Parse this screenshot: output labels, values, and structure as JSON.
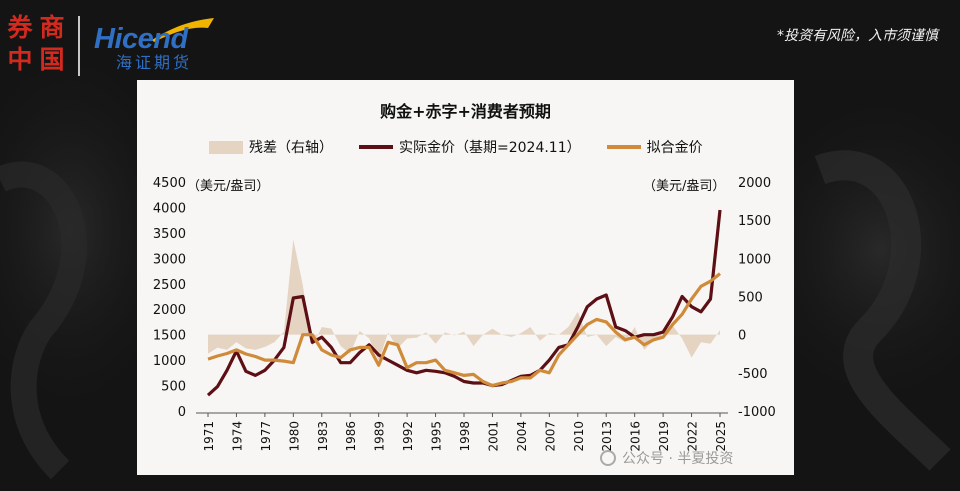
{
  "disclaimer": "*投资有风险，入市须谨慎",
  "brand": {
    "seal_chars": [
      "券",
      "商",
      "中",
      "国"
    ],
    "logo_en": "Hicend",
    "logo_cn": "海证期货",
    "seal_color": "#d22a1e",
    "logo_color": "#2f6fc4"
  },
  "watermark": {
    "icon": "wechat-icon",
    "text": "公众号 · 半夏投资"
  },
  "chart_data": {
    "type": "line",
    "title": "购金+赤字+消费者预期",
    "left_unit": "（美元/盎司）",
    "right_unit": "（美元/盎司）",
    "ylim_left": [
      0,
      4500
    ],
    "ylim_right": [
      -1000,
      2000
    ],
    "yticks_left": [
      "0",
      "500",
      "1000",
      "1500",
      "2000",
      "2500",
      "3000",
      "3500",
      "4000",
      "4500"
    ],
    "yticks_right": [
      "-1000",
      "-500",
      "0",
      "500",
      "1000",
      "1500",
      "2000"
    ],
    "x_tick_labels": [
      "1971",
      "1974",
      "1977",
      "1980",
      "1983",
      "1986",
      "1989",
      "1992",
      "1995",
      "1998",
      "2001",
      "2004",
      "2007",
      "2010",
      "2013",
      "2016",
      "2019",
      "2022",
      "2025"
    ],
    "x": [
      1971,
      1972,
      1973,
      1974,
      1975,
      1976,
      1977,
      1978,
      1979,
      1980,
      1981,
      1982,
      1983,
      1984,
      1985,
      1986,
      1987,
      1988,
      1989,
      1990,
      1991,
      1992,
      1993,
      1994,
      1995,
      1996,
      1997,
      1998,
      1999,
      2000,
      2001,
      2002,
      2003,
      2004,
      2005,
      2006,
      2007,
      2008,
      2009,
      2010,
      2011,
      2012,
      2013,
      2014,
      2015,
      2016,
      2017,
      2018,
      2019,
      2020,
      2021,
      2022,
      2023,
      2024,
      2025
    ],
    "series": [
      {
        "name": "残差（右轴）",
        "axis": "right",
        "style": "area",
        "color": "#e6d4c2",
        "values": [
          -250,
          -170,
          -200,
          -100,
          -180,
          -200,
          -160,
          -100,
          40,
          1250,
          650,
          -150,
          100,
          80,
          -150,
          -250,
          50,
          -50,
          -350,
          30,
          -180,
          -50,
          -40,
          30,
          -120,
          30,
          -10,
          40,
          -150,
          0,
          80,
          0,
          -30,
          20,
          100,
          -80,
          20,
          0,
          100,
          300,
          -30,
          0,
          -150,
          -30,
          -100,
          100,
          -200,
          -80,
          0,
          120,
          -50,
          -300,
          -100,
          -120,
          60
        ]
      },
      {
        "name": "实际金价（基期=2024.11）",
        "axis": "left",
        "style": "line",
        "color": "#5c0f14",
        "values": [
          310,
          480,
          800,
          1180,
          780,
          700,
          800,
          1000,
          1250,
          2220,
          2250,
          1350,
          1450,
          1250,
          950,
          950,
          1150,
          1300,
          1100,
          1000,
          900,
          800,
          750,
          800,
          780,
          750,
          680,
          580,
          550,
          550,
          500,
          520,
          600,
          680,
          700,
          800,
          1000,
          1250,
          1300,
          1650,
          2050,
          2200,
          2280,
          1650,
          1580,
          1450,
          1500,
          1500,
          1550,
          1850,
          2250,
          2050,
          1950,
          2200,
          3950
        ]
      },
      {
        "name": "拟合金价",
        "axis": "left",
        "style": "line",
        "color": "#cf8a3a",
        "values": [
          1020,
          1080,
          1130,
          1200,
          1120,
          1070,
          1000,
          1000,
          980,
          950,
          1500,
          1500,
          1200,
          1100,
          1050,
          1200,
          1250,
          1250,
          900,
          1350,
          1300,
          850,
          950,
          950,
          1000,
          800,
          750,
          700,
          720,
          580,
          500,
          550,
          580,
          650,
          650,
          800,
          750,
          1100,
          1300,
          1500,
          1700,
          1800,
          1750,
          1550,
          1400,
          1450,
          1300,
          1400,
          1450,
          1700,
          1900,
          2200,
          2450,
          2550,
          2700
        ]
      }
    ]
  }
}
